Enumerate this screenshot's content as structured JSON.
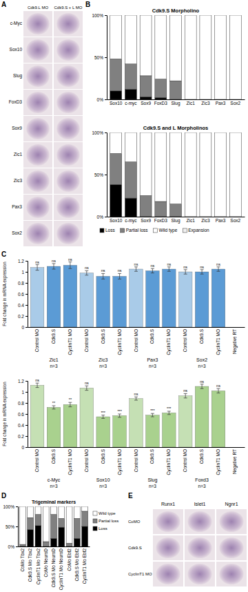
{
  "panel_labels": [
    "A",
    "B",
    "C",
    "D",
    "E"
  ],
  "panel_a": {
    "columns": [
      "Cdk9.L MO",
      "Cdk9.S + L MO"
    ],
    "rows": [
      "c-Myc",
      "Sox10",
      "Slug",
      "FoxD3",
      "Sox9",
      "Zic1",
      "Zic3",
      "Pax3",
      "Sox2"
    ]
  },
  "panel_e": {
    "columns": [
      "Runx1",
      "Islet1",
      "Ngnr1"
    ],
    "rows": [
      "CoMO",
      "Cdk9.S",
      "CyclinT1 MO"
    ]
  },
  "chart_data": [
    {
      "type": "bar",
      "stacked": true,
      "title": "Cdk9.S Morpholino",
      "categories": [
        "Sox10",
        "c-myc",
        "Sox9",
        "FoxD3",
        "Slug",
        "Zic1",
        "Zic3",
        "Pax3",
        "Sox2"
      ],
      "series": [
        {
          "name": "Loss",
          "color": "#000000",
          "values": [
            10,
            12,
            3,
            2,
            0,
            0,
            0,
            0,
            0
          ]
        },
        {
          "name": "Partial loss",
          "color": "#808080",
          "values": [
            38,
            30,
            25,
            22,
            22,
            0,
            0,
            0,
            0
          ]
        },
        {
          "name": "Wild type",
          "color": "#ffffff",
          "values": [
            52,
            58,
            72,
            76,
            78,
            100,
            100,
            100,
            100
          ]
        },
        {
          "name": "Expansion",
          "color": "#f0f0f0",
          "values": [
            0,
            0,
            0,
            0,
            0,
            0,
            0,
            0,
            0
          ]
        }
      ],
      "ylim": [
        0,
        100
      ],
      "yticks": [
        {
          "value": 0,
          "label": "0%"
        },
        {
          "value": 50,
          "label": "50%"
        },
        {
          "value": 100,
          "label": "100%"
        }
      ]
    },
    {
      "type": "bar",
      "stacked": true,
      "title": "Cdk9.S and L Morpholinos",
      "legend": "bottom",
      "categories": [
        "Sox10",
        "c-myc",
        "Sox9",
        "FoxD3",
        "Slug",
        "Zic1",
        "Zic3",
        "Pax3",
        "Sox2"
      ],
      "series": [
        {
          "name": "Loss",
          "color": "#000000",
          "values": [
            38,
            22,
            0,
            0,
            0,
            0,
            0,
            0,
            0
          ]
        },
        {
          "name": "Partial loss",
          "color": "#808080",
          "values": [
            37,
            43,
            25,
            18,
            15,
            0,
            0,
            0,
            0
          ]
        },
        {
          "name": "Wild type",
          "color": "#ffffff",
          "values": [
            25,
            35,
            75,
            82,
            85,
            100,
            100,
            100,
            100
          ]
        },
        {
          "name": "Expansion",
          "color": "#f0f0f0",
          "values": [
            0,
            0,
            0,
            0,
            0,
            0,
            0,
            0,
            0
          ]
        }
      ],
      "ylim": [
        0,
        100
      ],
      "yticks": [
        {
          "value": 0,
          "label": "0%"
        },
        {
          "value": 50,
          "label": "50%"
        },
        {
          "value": 100,
          "label": "100%"
        }
      ]
    },
    {
      "type": "bar",
      "y_label": "Fold change in mRNA expression",
      "categories": [
        "Control MO",
        "Cdk9.S",
        "CyclinT1 MO",
        "Control MO",
        "Cdk9.S",
        "CyclinT1 MO",
        "Control MO",
        "Cdk9.S",
        "CyclinT1 MO",
        "Control MO",
        "Cdk9.S",
        "CyclinT1 MO",
        "Negative RT"
      ],
      "values": [
        1.08,
        1.1,
        1.12,
        0.98,
        0.92,
        0.92,
        1.05,
        1.02,
        1.05,
        1.0,
        1.0,
        1.05,
        0
      ],
      "errors": [
        0.05,
        0.05,
        0.06,
        0.04,
        0.05,
        0.05,
        0.04,
        0.04,
        0.04,
        0.04,
        0.04,
        0.04,
        null
      ],
      "annotations": [
        "ns",
        "ns",
        "ns",
        "ns",
        "ns",
        "ns",
        "ns",
        "ns",
        "ns",
        "ns",
        "ns",
        "ns",
        null
      ],
      "colors": [
        "#a9cbe8",
        "#5b9bd5",
        "#5b9bd5",
        "#a9cbe8",
        "#5b9bd5",
        "#5b9bd5",
        "#a9cbe8",
        "#5b9bd5",
        "#5b9bd5",
        "#a9cbe8",
        "#5b9bd5",
        "#5b9bd5",
        "#cccccc"
      ],
      "groups": [
        "Zic1",
        "Zic3",
        "Pax3",
        "Sox2"
      ],
      "group_n": [
        "n=3",
        "n=3",
        "n=3",
        "n=3"
      ],
      "ylim": [
        0,
        1.2
      ],
      "yticks": [
        0,
        0.2,
        0.4,
        0.6,
        0.8,
        1,
        1.2
      ]
    },
    {
      "type": "bar",
      "y_label": "Fold change in mRNA expression",
      "categories": [
        "Control MO",
        "Cdk9.S",
        "CyclinT1 MO",
        "Control MO",
        "Cdk9.S",
        "CyclinT1 MO",
        "Control MO",
        "Cdk9.S",
        "CyclinT1 MO",
        "Control MO",
        "Cdk9.S",
        "CyclinT1 MO",
        "Negative RT"
      ],
      "values": [
        1.12,
        0.72,
        0.77,
        1.07,
        0.55,
        0.57,
        0.88,
        0.58,
        0.62,
        0.93,
        1.1,
        1.02,
        0
      ],
      "errors": [
        0.04,
        0.03,
        0.04,
        0.04,
        0.03,
        0.03,
        0.03,
        0.03,
        0.03,
        0.04,
        0.04,
        0.04,
        null
      ],
      "annotations": [
        "ns",
        "**",
        "**",
        "ns",
        "***",
        "***",
        "ns",
        "***",
        "***",
        "ns",
        "ns",
        "ns",
        null
      ],
      "colors": [
        "#c5e0b4",
        "#a9d18e",
        "#a9d18e",
        "#c5e0b4",
        "#a9d18e",
        "#a9d18e",
        "#c5e0b4",
        "#a9d18e",
        "#a9d18e",
        "#c5e0b4",
        "#a9d18e",
        "#a9d18e",
        "#cccccc"
      ],
      "groups": [
        "c-Myc",
        "Sox10",
        "Slug",
        "Foxd3"
      ],
      "group_n": [
        "n=3",
        "n=3",
        "n=3",
        "n=3"
      ],
      "ylim": [
        0,
        1.2
      ],
      "yticks": [
        0,
        0.2,
        0.4,
        0.6,
        0.8,
        1,
        1.2
      ]
    },
    {
      "type": "bar",
      "stacked": true,
      "title": "Trigeminal markers",
      "legend": "right",
      "categories": [
        "CoMo Tbx2",
        "Cdk9.S Mo Tbx2",
        "CyclinT1 Mo Tbx2",
        "CoMo NeuroD",
        "Cdk9.S Mo NeuroD",
        "CyclinT1 Mo NeuroD",
        "CoMo Ebf2",
        "Cdk9.S Mo Ebf2",
        "CyclinT1 Mo Ebf2"
      ],
      "series": [
        {
          "name": "Loss",
          "color": "#000000",
          "values": [
            0,
            42,
            52,
            0,
            20,
            48,
            0,
            20,
            50
          ]
        },
        {
          "name": "Partial loss",
          "color": "#808080",
          "values": [
            5,
            30,
            28,
            12,
            60,
            22,
            8,
            50,
            38
          ]
        },
        {
          "name": "Wild type",
          "color": "#ffffff",
          "values": [
            95,
            28,
            20,
            88,
            20,
            30,
            92,
            30,
            12
          ]
        }
      ],
      "ylim": [
        0,
        100
      ],
      "yticks": [
        {
          "value": 0,
          "label": "0%"
        },
        {
          "value": 50,
          "label": "50%"
        },
        {
          "value": 100,
          "label": "100%"
        }
      ]
    }
  ]
}
